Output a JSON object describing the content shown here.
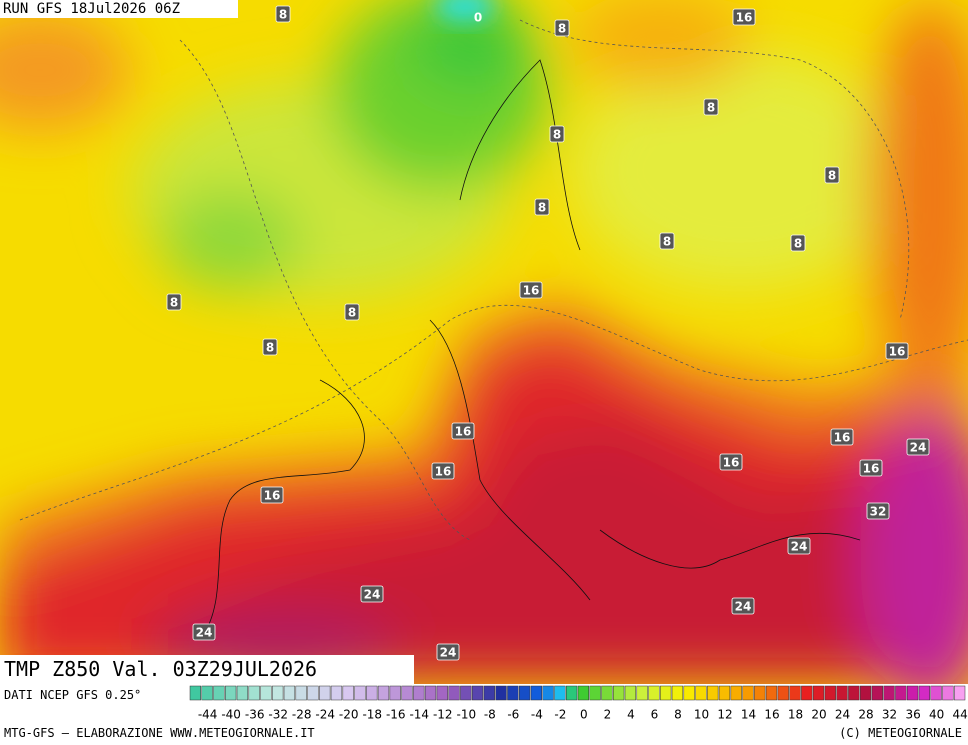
{
  "header": {
    "run": "RUN GFS 18Jul2026 06Z"
  },
  "map": {
    "contour_labels": [
      "8",
      "0",
      "8",
      "16",
      "8",
      "8",
      "8",
      "8",
      "8",
      "8",
      "8",
      "8",
      "16",
      "8",
      "16",
      "16",
      "24",
      "16",
      "16",
      "16",
      "16",
      "16",
      "32",
      "24",
      "24",
      "24",
      "24",
      "24"
    ]
  },
  "footer": {
    "title": "TMP  Z850  Val. 03Z29JUL2026",
    "source": "DATI NCEP GFS 0.25°",
    "scale": [
      -44,
      -40,
      -36,
      -32,
      -28,
      -24,
      -20,
      -18,
      -16,
      -14,
      -12,
      -10,
      -8,
      -6,
      -4,
      -2,
      0,
      2,
      4,
      6,
      8,
      10,
      12,
      14,
      16,
      18,
      20,
      24,
      28,
      32,
      36,
      40,
      44
    ],
    "credit": "MTG-GFS — ELABORAZIONE WWW.METEOGIORNALE.IT",
    "copyright": "(C) METEOGIORNALE"
  }
}
